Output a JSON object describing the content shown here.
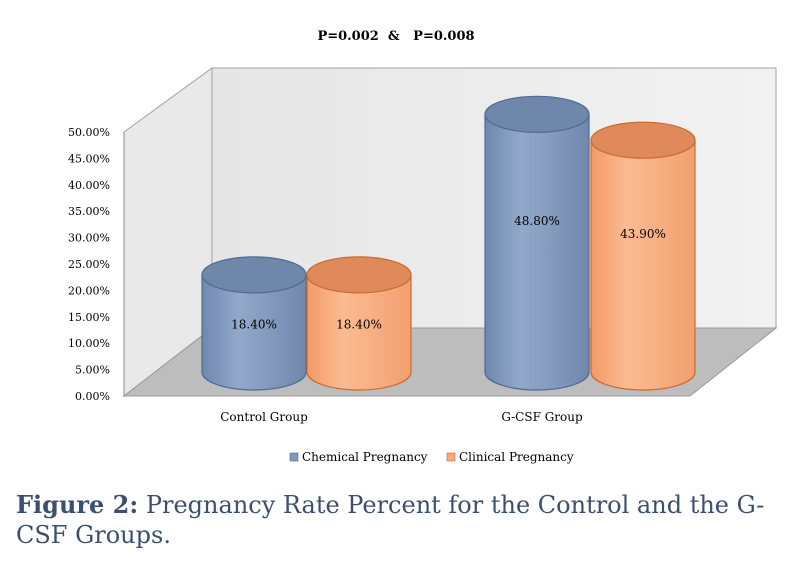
{
  "chart_data": {
    "type": "bar",
    "title": "P=0.002  &   P=0.008",
    "categories": [
      "Control Group",
      "G-CSF Group"
    ],
    "series": [
      {
        "name": "Chemical Pregnancy",
        "values": [
          18.4,
          48.8
        ],
        "labels": [
          "18.40%",
          "48.80%"
        ],
        "color": "#7f98bd"
      },
      {
        "name": "Clinical Pregnancy",
        "values": [
          18.4,
          43.9
        ],
        "labels": [
          "18.40%",
          "43.90%"
        ],
        "color": "#f6a97a"
      }
    ],
    "ylim": [
      0,
      50
    ],
    "yticks": [
      "0.00%",
      "5.00%",
      "10.00%",
      "15.00%",
      "20.00%",
      "25.00%",
      "30.00%",
      "35.00%",
      "40.00%",
      "45.00%",
      "50.00%"
    ],
    "legend_position": "bottom",
    "style": "3d-cylinder",
    "grid": false
  },
  "caption": {
    "label": "Figure 2:",
    "text": "Pregnancy Rate Percent for the Control and the G-CSF Groups."
  }
}
